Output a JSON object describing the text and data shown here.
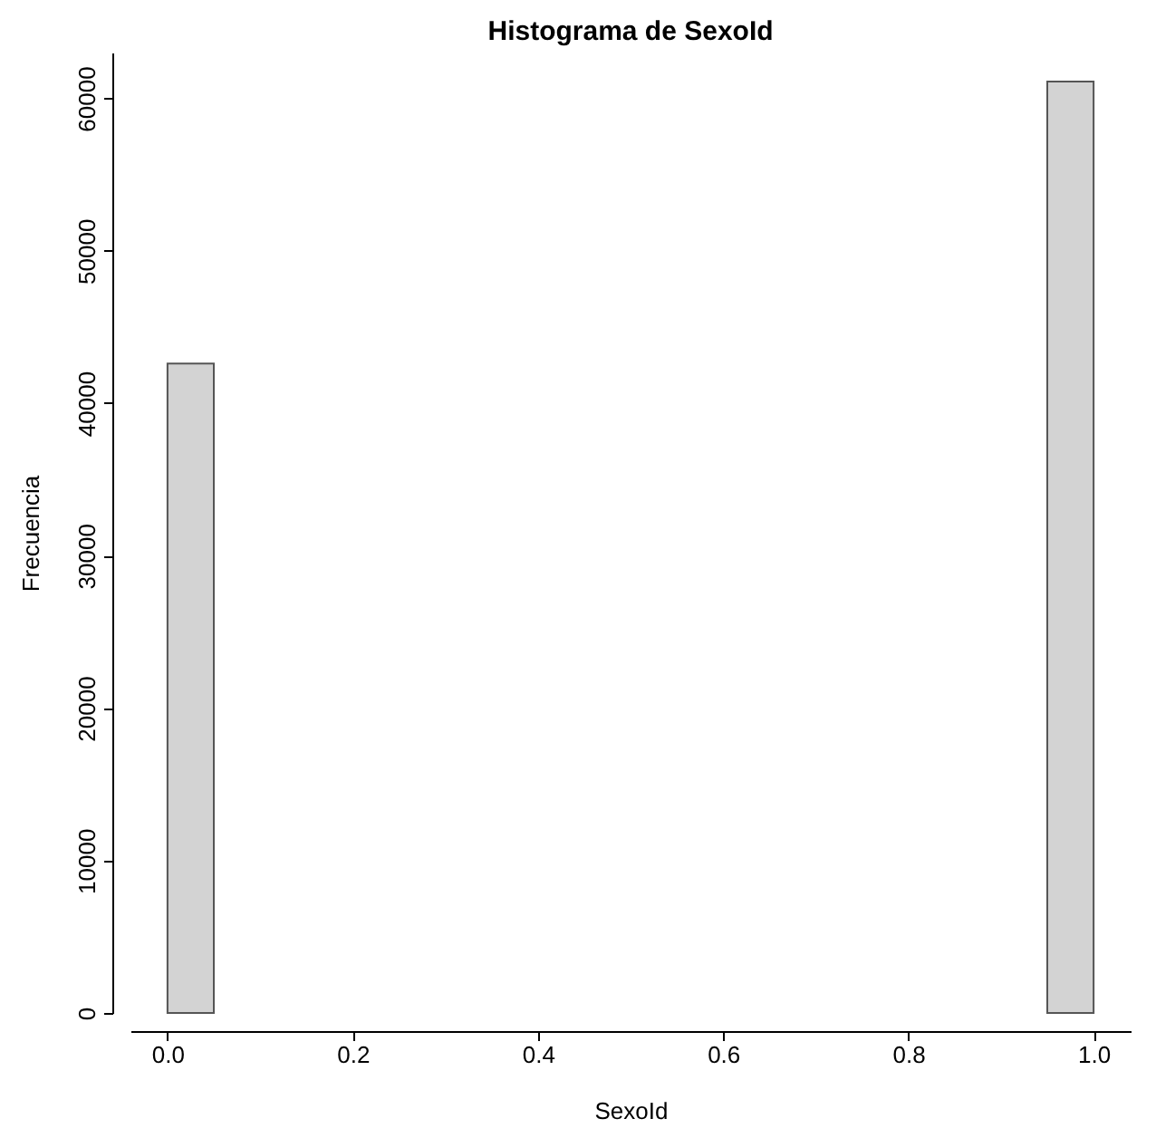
{
  "chart_data": {
    "type": "histogram",
    "title": "Histograma de SexoId",
    "xlabel": "SexoId",
    "ylabel": "Frecuencia",
    "bins": [
      0,
      0.05,
      0.1,
      0.15,
      0.2,
      0.25,
      0.3,
      0.35,
      0.4,
      0.45,
      0.5,
      0.55,
      0.6,
      0.65,
      0.7,
      0.75,
      0.8,
      0.85,
      0.9,
      0.95,
      1.0
    ],
    "values": [
      42600,
      0,
      0,
      0,
      0,
      0,
      0,
      0,
      0,
      0,
      0,
      0,
      0,
      0,
      0,
      0,
      0,
      0,
      0,
      61100
    ],
    "color": "#d3d3d3",
    "xlim": [
      -0.04,
      1.04
    ],
    "xticks": [
      {
        "value": 0,
        "label": "0.0"
      },
      0.2,
      0.4,
      0.6,
      0.8,
      {
        "value": 1,
        "label": "1.0"
      }
    ],
    "ylim": [
      0,
      63000
    ],
    "yticks": [
      0,
      10000,
      20000,
      30000,
      40000,
      50000,
      60000
    ],
    "grid": false
  }
}
